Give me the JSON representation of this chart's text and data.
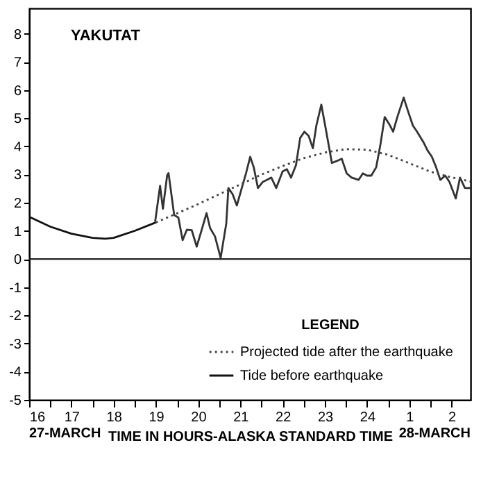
{
  "chart_data": {
    "type": "line",
    "title": "YAKUTAT",
    "xlabel": "TIME IN HOURS-ALASKA STANDARD TIME",
    "legend_title": "LEGEND",
    "legend": "bottom right",
    "grid": false,
    "marker": "none",
    "annotations": [
      "27-MARCH",
      "28-MARCH"
    ],
    "xlim": [
      "--03-27T16:00",
      "--03-28T02:27"
    ],
    "ylim": [
      -5,
      8.9
    ],
    "xticks": [
      {
        "value": "--03-27T16:00",
        "label": "16"
      },
      {
        "value": "--03-27T16:30",
        "label": null
      },
      {
        "value": "--03-27T17:00",
        "label": "17"
      },
      {
        "value": "--03-27T17:30",
        "label": null
      },
      {
        "value": "--03-27T18:00",
        "label": "18"
      },
      {
        "value": "--03-27T18:30",
        "label": null
      },
      {
        "value": "--03-27T19:00",
        "label": "19"
      },
      {
        "value": "--03-27T19:30",
        "label": null
      },
      {
        "value": "--03-27T20:00",
        "label": "20"
      },
      {
        "value": "--03-27T20:30",
        "label": null
      },
      {
        "value": "--03-27T21:00",
        "label": "21"
      },
      {
        "value": "--03-27T21:30",
        "label": null
      },
      {
        "value": "--03-27T22:00",
        "label": "22"
      },
      {
        "value": "--03-27T22:30",
        "label": null
      },
      {
        "value": "--03-27T23:00",
        "label": "23"
      },
      {
        "value": "--03-27T23:30",
        "label": null
      },
      {
        "value": "--03-28T00:00",
        "label": "24"
      },
      {
        "value": "--03-28T00:30",
        "label": null
      },
      {
        "value": "--03-28T01:00",
        "label": "1"
      },
      {
        "value": "--03-28T01:30",
        "label": null
      },
      {
        "value": "--03-28T02:00",
        "label": "2"
      }
    ],
    "yticks": [
      -5,
      -4,
      -3,
      -2,
      -1,
      0,
      1,
      2,
      3,
      4,
      5,
      6,
      7,
      8
    ],
    "ref_lines": [
      {
        "axis": "y",
        "value": 0,
        "color": "#222222",
        "line_style": "solid"
      }
    ],
    "series": [
      {
        "color": "#333333",
        "line_style": "solid",
        "x": [
          "--03-27T18:59",
          "--03-27T19:06",
          "--03-27T19:10",
          "--03-27T19:16",
          "--03-27T19:18",
          "--03-27T19:26",
          "--03-27T19:32",
          "--03-27T19:38",
          "--03-27T19:44",
          "--03-27T19:51",
          "--03-27T19:58",
          "--03-27T20:05",
          "--03-27T20:12",
          "--03-27T20:17",
          "--03-27T20:24",
          "--03-27T20:32",
          "--03-27T20:40",
          "--03-27T20:43",
          "--03-27T20:49",
          "--03-27T20:55",
          "--03-27T21:02",
          "--03-27T21:08",
          "--03-27T21:14",
          "--03-27T21:19",
          "--03-27T21:25",
          "--03-27T21:32",
          "--03-27T21:38",
          "--03-27T21:44",
          "--03-27T21:51",
          "--03-27T22:00",
          "--03-27T22:06",
          "--03-27T22:12",
          "--03-27T22:19",
          "--03-27T22:25",
          "--03-27T22:31",
          "--03-27T22:37",
          "--03-27T22:43",
          "--03-27T22:48",
          "--03-27T22:55",
          "--03-27T23:01",
          "--03-27T23:10",
          "--03-27T23:17",
          "--03-27T23:24",
          "--03-27T23:31",
          "--03-27T23:38",
          "--03-27T23:48",
          "--03-27T23:54",
          "--03-28T00:00",
          "--03-28T00:06",
          "--03-28T00:13",
          "--03-28T00:19",
          "--03-28T00:25",
          "--03-28T00:31",
          "--03-28T00:37",
          "--03-28T00:43",
          "--03-28T00:52",
          "--03-28T00:58",
          "--03-28T01:05",
          "--03-28T01:11",
          "--03-28T01:20",
          "--03-28T01:26",
          "--03-28T01:32",
          "--03-28T01:38",
          "--03-28T01:44",
          "--03-28T01:51",
          "--03-28T01:57",
          "--03-28T02:06",
          "--03-28T02:12",
          "--03-28T02:19",
          "--03-28T02:27"
        ],
        "values": [
          1.33,
          2.6,
          1.78,
          2.97,
          3.05,
          1.56,
          1.47,
          0.67,
          1.04,
          1.02,
          0.44,
          1.03,
          1.63,
          1.1,
          0.8,
          0.04,
          1.26,
          2.52,
          2.3,
          1.9,
          2.52,
          3.04,
          3.63,
          3.26,
          2.52,
          2.74,
          2.81,
          2.89,
          2.52,
          3.11,
          3.19,
          2.89,
          3.33,
          4.3,
          4.52,
          4.37,
          3.93,
          4.74,
          5.48,
          4.67,
          3.41,
          3.48,
          3.56,
          3.04,
          2.89,
          2.81,
          3.04,
          2.96,
          2.96,
          3.26,
          4.07,
          5.04,
          4.81,
          4.52,
          5.04,
          5.73,
          5.26,
          4.74,
          4.52,
          4.15,
          3.85,
          3.63,
          3.26,
          2.81,
          2.96,
          2.74,
          2.15,
          2.89,
          2.52,
          2.52
        ]
      },
      {
        "name": "Projected tide after the earthquake",
        "color": "#444444",
        "line_style": "dotted",
        "x": [
          "--03-27T19:00",
          "--03-27T19:30",
          "--03-27T20:00",
          "--03-27T20:30",
          "--03-27T21:00",
          "--03-27T21:30",
          "--03-27T22:00",
          "--03-27T22:30",
          "--03-27T23:00",
          "--03-27T23:30",
          "--03-28T00:00",
          "--03-28T00:30",
          "--03-28T01:00",
          "--03-28T01:30",
          "--03-28T02:00",
          "--03-28T02:27"
        ],
        "values": [
          1.3,
          1.62,
          1.95,
          2.3,
          2.65,
          3.0,
          3.3,
          3.58,
          3.78,
          3.9,
          3.88,
          3.7,
          3.4,
          3.1,
          2.9,
          2.75
        ]
      },
      {
        "name": "Tide before earthquake",
        "color": "#111111",
        "line_style": "solid",
        "x": [
          "--03-27T16:00",
          "--03-27T16:30",
          "--03-27T17:00",
          "--03-27T17:30",
          "--03-27T17:48",
          "--03-27T18:00",
          "--03-27T18:30",
          "--03-27T19:00"
        ],
        "values": [
          1.5,
          1.15,
          0.9,
          0.75,
          0.72,
          0.75,
          1.0,
          1.3
        ]
      }
    ]
  }
}
